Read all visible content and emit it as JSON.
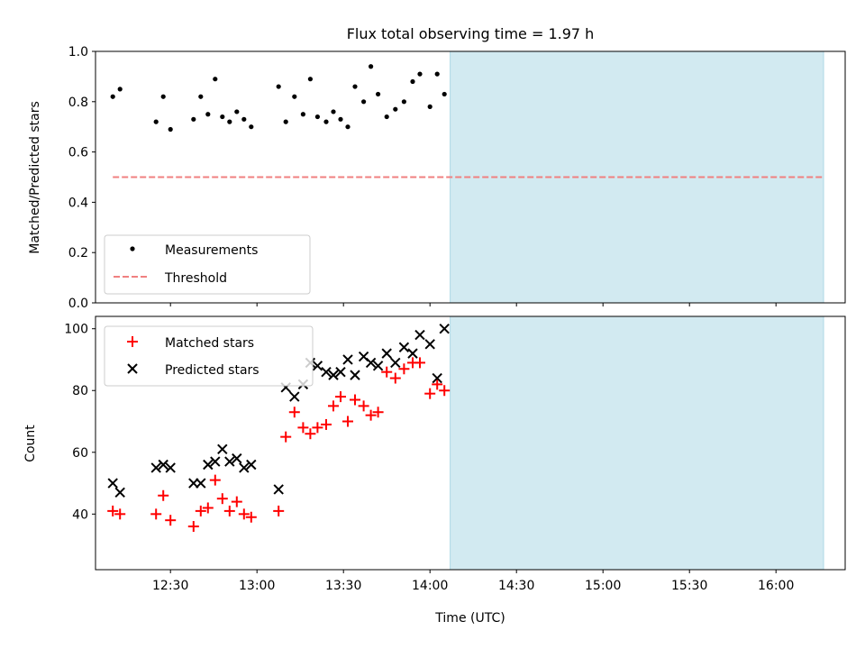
{
  "figure_title": "Flux total observing time = 1.97 h",
  "x_axis": {
    "label": "Time (UTC)",
    "unit": "minutes-since-midnight",
    "lim": [
      724,
      984
    ],
    "ticks": [
      {
        "value": 750,
        "label": "12:30"
      },
      {
        "value": 780,
        "label": "13:00"
      },
      {
        "value": 810,
        "label": "13:30"
      },
      {
        "value": 840,
        "label": "14:00"
      },
      {
        "value": 870,
        "label": "14:30"
      },
      {
        "value": 900,
        "label": "15:00"
      },
      {
        "value": 930,
        "label": "15:30"
      },
      {
        "value": 960,
        "label": "16:00"
      }
    ]
  },
  "highlight": {
    "color": "#add8e6",
    "start": 847,
    "end": 976.5
  },
  "chart_data": [
    {
      "type": "scatter",
      "title": "Flux total observing time = 1.97 h",
      "xlabel": "",
      "ylabel": "Matched/Predicted stars",
      "ylim": [
        0,
        1.0
      ],
      "yticks": [
        0.0,
        0.2,
        0.4,
        0.6,
        0.8,
        1.0
      ],
      "ytick_labels": [
        "0.0",
        "0.2",
        "0.4",
        "0.6",
        "0.8",
        "1.0"
      ],
      "legend": {
        "position": "lower-left",
        "entries": [
          "Measurements",
          "Threshold"
        ]
      },
      "series": [
        {
          "name": "Measurements",
          "marker": "dot",
          "color": "#000000",
          "x": [
            730,
            732.5,
            745,
            747.5,
            750,
            758,
            760.5,
            763,
            765.5,
            768,
            770.5,
            773,
            775.5,
            778,
            787.5,
            790,
            793,
            796,
            798.5,
            801,
            804,
            806.5,
            809,
            811.5,
            814,
            817,
            819.5,
            822,
            825,
            828,
            831,
            834,
            836.5,
            840,
            842.5,
            845
          ],
          "y": [
            0.82,
            0.85,
            0.72,
            0.82,
            0.69,
            0.73,
            0.82,
            0.75,
            0.89,
            0.74,
            0.72,
            0.76,
            0.73,
            0.7,
            0.86,
            0.72,
            0.82,
            0.75,
            0.89,
            0.74,
            0.72,
            0.76,
            0.73,
            0.7,
            0.86,
            0.8,
            0.94,
            0.83,
            0.74,
            0.77,
            0.8,
            0.88,
            0.91,
            0.78,
            0.91,
            0.83
          ]
        },
        {
          "name": "Threshold",
          "marker": "dashed-line",
          "color": "#f08080",
          "x": [
            730,
            976.5
          ],
          "y": [
            0.5,
            0.5
          ]
        }
      ]
    },
    {
      "type": "scatter",
      "xlabel": "Time (UTC)",
      "ylabel": "Count",
      "ylim": [
        22,
        104
      ],
      "yticks": [
        40,
        60,
        80,
        100
      ],
      "ytick_labels": [
        "40",
        "60",
        "80",
        "100"
      ],
      "legend": {
        "position": "upper-left",
        "entries": [
          "Matched stars",
          "Predicted stars"
        ]
      },
      "series": [
        {
          "name": "Matched stars",
          "marker": "plus",
          "color": "#ff0000",
          "x": [
            730,
            732.5,
            745,
            747.5,
            750,
            758,
            760.5,
            763,
            765.5,
            768,
            770.5,
            773,
            775.5,
            778,
            787.5,
            790,
            793,
            796,
            798.5,
            801,
            804,
            806.5,
            809,
            811.5,
            814,
            817,
            819.5,
            822,
            825,
            828,
            831,
            834,
            836.5,
            840,
            842.5,
            845
          ],
          "y": [
            41,
            40,
            40,
            46,
            38,
            36,
            41,
            42,
            51,
            45,
            41,
            44,
            40,
            39,
            41,
            65,
            73,
            68,
            66,
            68,
            69,
            75,
            78,
            70,
            77,
            75,
            72,
            73,
            86,
            84,
            87,
            89,
            89,
            79,
            82,
            80
          ]
        },
        {
          "name": "Predicted stars",
          "marker": "x",
          "color": "#000000",
          "x": [
            730,
            732.5,
            745,
            747.5,
            750,
            758,
            760.5,
            763,
            765.5,
            768,
            770.5,
            773,
            775.5,
            778,
            787.5,
            790,
            793,
            796,
            798.5,
            801,
            804,
            806.5,
            809,
            811.5,
            814,
            817,
            819.5,
            822,
            825,
            828,
            831,
            834,
            836.5,
            840,
            842.5,
            845
          ],
          "y": [
            50,
            47,
            55,
            56,
            55,
            50,
            50,
            56,
            57,
            61,
            57,
            58,
            55,
            56,
            48,
            81,
            78,
            82,
            89,
            88,
            86,
            85,
            86,
            90,
            85,
            91,
            89,
            88,
            92,
            89,
            94,
            92,
            98,
            95,
            84,
            100
          ]
        }
      ]
    }
  ]
}
